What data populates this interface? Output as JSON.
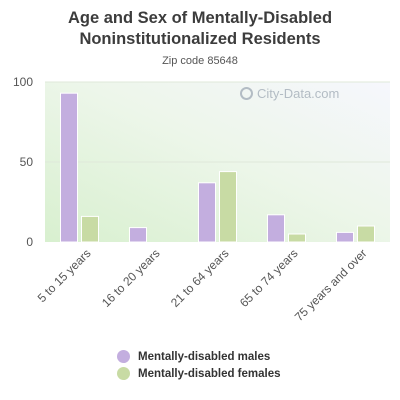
{
  "title_line1": "Age and Sex of Mentally-Disabled",
  "title_line2": "Noninstitutionalized Residents",
  "subtitle": "Zip code 85648",
  "watermark": "City-Data.com",
  "colors": {
    "males": "#c3aedf",
    "females": "#c8dba4",
    "axis_text": "#555555",
    "grid": "#dfe8da"
  },
  "chart_data": {
    "type": "bar",
    "categories": [
      "5 to 15 years",
      "16 to 20 years",
      "21 to 64 years",
      "65 to 74 years",
      "75 years and over"
    ],
    "series": [
      {
        "name": "Mentally-disabled males",
        "values": [
          93,
          9,
          37,
          17,
          6
        ]
      },
      {
        "name": "Mentally-disabled females",
        "values": [
          16,
          0,
          44,
          5,
          10
        ]
      }
    ],
    "yticks": [
      0,
      50,
      100
    ],
    "ylim": [
      0,
      100
    ],
    "legend_position": "bottom",
    "grid": true
  }
}
